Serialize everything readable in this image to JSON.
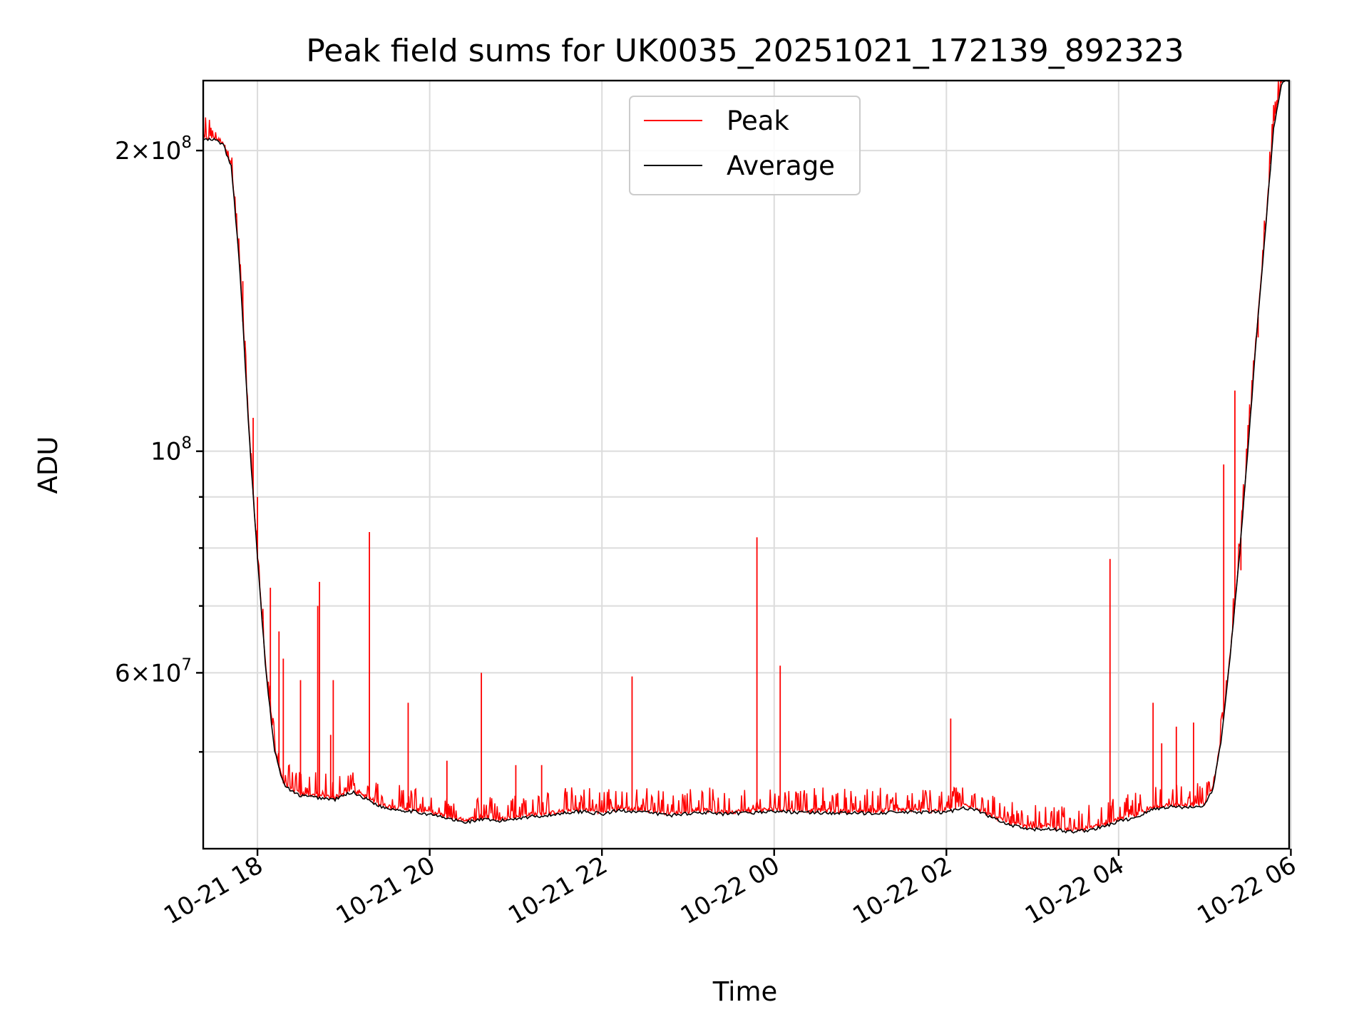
{
  "chart_data": {
    "type": "line",
    "title": "Peak field sums for UK0035_20251021_172139_892323",
    "xlabel": "Time",
    "ylabel": "ADU",
    "yscale": "log",
    "ylim": [
      40000000,
      235000000
    ],
    "xlim_hours_from_2025-10-21_00:00": [
      17.37,
      29.98
    ],
    "grid": true,
    "legend_position": "upper center",
    "x_ticks": [
      {
        "hour": 18,
        "label": "10-21 18"
      },
      {
        "hour": 20,
        "label": "10-21 20"
      },
      {
        "hour": 22,
        "label": "10-21 22"
      },
      {
        "hour": 24,
        "label": "10-22 00"
      },
      {
        "hour": 26,
        "label": "10-22 02"
      },
      {
        "hour": 28,
        "label": "10-22 04"
      },
      {
        "hour": 30,
        "label": "10-22 06"
      }
    ],
    "y_major_ticks": [
      {
        "value": 60000000,
        "mantissa": "6",
        "exp": "7"
      },
      {
        "value": 100000000,
        "mantissa": "",
        "exp": "8"
      },
      {
        "value": 200000000,
        "mantissa": "2",
        "exp": "8"
      }
    ],
    "y_minor_ticks": [
      50000000,
      70000000,
      80000000,
      90000000
    ],
    "series": [
      {
        "name": "Average",
        "color": "#000000",
        "x": [
          17.37,
          17.5,
          17.6,
          17.7,
          17.8,
          17.9,
          18.0,
          18.1,
          18.2,
          18.3,
          18.4,
          18.5,
          18.7,
          18.9,
          19.1,
          19.3,
          19.45,
          19.6,
          19.8,
          20.0,
          20.2,
          20.4,
          20.6,
          20.8,
          21.0,
          21.2,
          21.4,
          21.6,
          21.8,
          22.0,
          22.2,
          22.4,
          22.6,
          22.8,
          23.0,
          23.2,
          23.4,
          23.6,
          23.8,
          24.0,
          24.3,
          24.6,
          25.0,
          25.4,
          25.8,
          26.0,
          26.2,
          26.35,
          26.5,
          26.7,
          26.9,
          27.0,
          27.2,
          27.4,
          27.6,
          27.8,
          28.0,
          28.2,
          28.4,
          28.6,
          28.8,
          29.0,
          29.1,
          29.2,
          29.3,
          29.4,
          29.5,
          29.6,
          29.7,
          29.8,
          29.9,
          29.98
        ],
        "y": [
          205000000,
          205000000,
          203000000,
          192000000,
          150000000,
          105000000,
          78000000,
          60000000,
          50000000,
          46500000,
          45600000,
          45200000,
          45000000,
          44800000,
          45600000,
          44700000,
          44000000,
          43800000,
          43600000,
          43300000,
          42900000,
          42500000,
          42800000,
          42600000,
          42900000,
          43100000,
          43200000,
          43500000,
          43600000,
          43300000,
          43700000,
          43600000,
          43400000,
          43200000,
          43400000,
          43500000,
          43300000,
          43400000,
          43500000,
          43600000,
          43500000,
          43450000,
          43400000,
          43500000,
          43500000,
          43500000,
          44000000,
          43700000,
          43100000,
          42300000,
          41900000,
          41800000,
          41900000,
          41600000,
          41700000,
          42000000,
          42600000,
          43000000,
          43800000,
          44100000,
          44000000,
          44200000,
          46000000,
          52000000,
          63000000,
          78000000,
          100000000,
          130000000,
          165000000,
          210000000,
          235000000,
          235000000
        ]
      },
      {
        "name": "Peak",
        "color": "#ff0000",
        "spikes": [
          {
            "x": 17.83,
            "y": 148000000
          },
          {
            "x": 17.95,
            "y": 108000000
          },
          {
            "x": 18.0,
            "y": 90000000
          },
          {
            "x": 18.15,
            "y": 73000000
          },
          {
            "x": 18.25,
            "y": 66000000
          },
          {
            "x": 18.3,
            "y": 62000000
          },
          {
            "x": 18.5,
            "y": 59000000
          },
          {
            "x": 18.7,
            "y": 70000000
          },
          {
            "x": 18.72,
            "y": 74000000
          },
          {
            "x": 18.85,
            "y": 52000000
          },
          {
            "x": 18.88,
            "y": 59000000
          },
          {
            "x": 19.3,
            "y": 83000000
          },
          {
            "x": 19.75,
            "y": 56000000
          },
          {
            "x": 20.2,
            "y": 49000000
          },
          {
            "x": 20.6,
            "y": 60000000
          },
          {
            "x": 21.0,
            "y": 48500000
          },
          {
            "x": 21.3,
            "y": 48500000
          },
          {
            "x": 22.35,
            "y": 59500000
          },
          {
            "x": 23.8,
            "y": 82000000
          },
          {
            "x": 24.07,
            "y": 61000000
          },
          {
            "x": 26.05,
            "y": 54000000
          },
          {
            "x": 27.9,
            "y": 78000000
          },
          {
            "x": 28.4,
            "y": 56000000
          },
          {
            "x": 28.5,
            "y": 51000000
          },
          {
            "x": 28.67,
            "y": 53000000
          },
          {
            "x": 28.87,
            "y": 53500000
          },
          {
            "x": 29.22,
            "y": 97000000
          },
          {
            "x": 29.35,
            "y": 115000000
          },
          {
            "x": 29.42,
            "y": 76000000
          },
          {
            "x": 29.62,
            "y": 130000000
          }
        ]
      }
    ]
  }
}
